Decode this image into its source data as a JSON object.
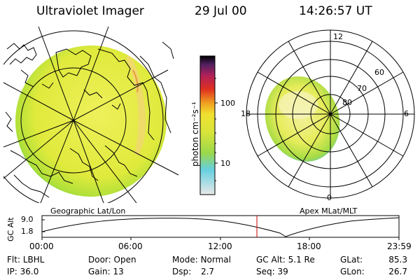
{
  "header": {
    "instrument": "Ultraviolet Imager",
    "date": "29 Jul 00",
    "time": "14:26:57 UT"
  },
  "colorbar": {
    "label": "photon cm⁻²s⁻¹",
    "ticks": [
      "100",
      "10"
    ]
  },
  "polar_plot": {
    "mlt_labels": [
      "12",
      "18",
      "6",
      "0"
    ],
    "mlat_labels": [
      "60",
      "70",
      "80"
    ]
  },
  "map_labels": {
    "left": "Geographic Lat/Lon",
    "right": "Apex MLat/MLT"
  },
  "altitude_plot": {
    "y_axis_title": "GC Alt",
    "y_ticks": [
      "9.0",
      "1.8"
    ],
    "x_ticks": [
      "00:00",
      "06:00",
      "12:00",
      "18:00",
      "23:59"
    ],
    "current_marker_utc": "14:26:57",
    "line_color": "#000000",
    "marker_color": "#cc0000"
  },
  "status": {
    "filter_label": "Flt:",
    "filter_value": "LBHL",
    "door_label": "Door:",
    "door_value": "Open",
    "mode_label": "Mode:",
    "mode_value": "Normal",
    "gcalt_label": "GC Alt:",
    "gcalt_value": "5.1 Re",
    "glat_label": "GLat:",
    "glat_value": "85.3",
    "ip_label": "IP:",
    "ip_value": "36.0",
    "gain_label": "Gain:",
    "gain_value": "13",
    "dsp_label": "Dsp:",
    "dsp_value": "2.7",
    "seq_label": "Seq:",
    "seq_value": "39",
    "glon_label": "GLon:",
    "glon_value": "26.7"
  },
  "colors": {
    "disk_fill": "#e0ea3c",
    "disk_edge": "#6cd43a",
    "oval_fill": "#e6ec5a",
    "colorbar_stops": [
      "#e8e8e8",
      "#66d0e0",
      "#9ad84a",
      "#d8e43a",
      "#f0e030",
      "#f0a020",
      "#e03020",
      "#b0205a",
      "#502060",
      "#000000"
    ]
  }
}
